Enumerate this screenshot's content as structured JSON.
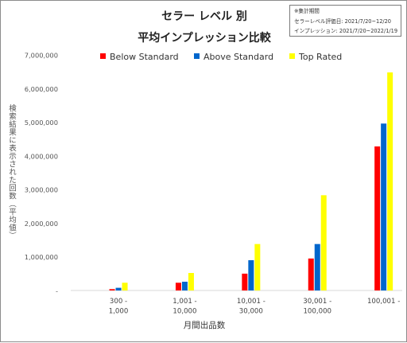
{
  "chart_data": {
    "type": "bar",
    "title": "セラー レベル 別",
    "subtitle": "平均インプレッション比較",
    "note": {
      "heading": "※集計期間",
      "line1": "セラーレベル評価日: 2021/7/20~12/20",
      "line2": "インプレッション: 2021/7/20~2022/1/19"
    },
    "categories": [
      [
        "300 -",
        "1,000"
      ],
      [
        "1,001 -",
        "10,000"
      ],
      [
        "10,001 -",
        "30,000"
      ],
      [
        "30,001 -",
        "100,000"
      ],
      [
        "100,001 -",
        ""
      ]
    ],
    "series": [
      {
        "name": "Below Standard",
        "color": "#ff0000",
        "values": [
          40000,
          230000,
          500000,
          950000,
          4280000
        ]
      },
      {
        "name": "Above Standard",
        "color": "#0066cc",
        "values": [
          80000,
          260000,
          900000,
          1380000,
          4960000
        ]
      },
      {
        "name": "Top Rated",
        "color": "#ffff00",
        "values": [
          230000,
          520000,
          1380000,
          2830000,
          6480000
        ]
      }
    ],
    "yticks": [
      "-",
      "1,000,000",
      "2,000,000",
      "3,000,000",
      "4,000,000",
      "5,000,000",
      "6,000,000",
      "7,000,000"
    ],
    "ylim": [
      0,
      7000000
    ],
    "xlabel": "月間出品数",
    "ylabel": "検索結果に表示された回数（平均値）",
    "grid": false,
    "legend_position": "top"
  }
}
